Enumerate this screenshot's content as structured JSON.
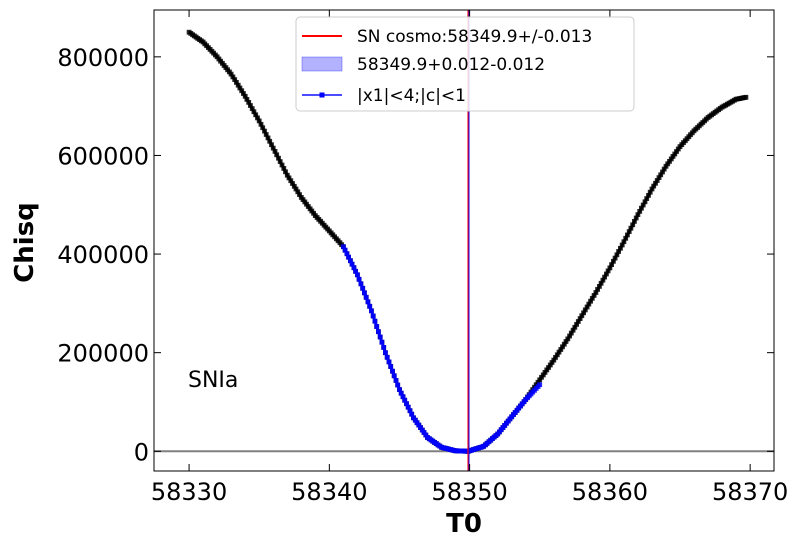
{
  "chart_data": {
    "type": "scatter",
    "title": "",
    "xlabel": "T0",
    "ylabel": "Chisq",
    "xlim": [
      58327.5,
      58371.7
    ],
    "ylim": [
      -40000,
      895000
    ],
    "xticks": [
      58330,
      58340,
      58350,
      58360,
      58370
    ],
    "yticks": [
      0,
      200000,
      400000,
      600000,
      800000
    ],
    "xtick_labels": [
      "58330",
      "58340",
      "58350",
      "58360",
      "58370"
    ],
    "ytick_labels": [
      "0",
      "200000",
      "400000",
      "600000",
      "800000"
    ],
    "grid": false,
    "legend_position": "top-center",
    "annotation": "SNIa",
    "hline": {
      "y": 0,
      "color": "#808080"
    },
    "vline": {
      "x": 58349.9,
      "color": "#ff0000"
    },
    "band": {
      "x_low": 58349.888,
      "x_high": 58349.912,
      "color": "#0000ff"
    },
    "legend": [
      {
        "label": "SN cosmo:58349.9+/-0.013",
        "kind": "line",
        "color": "#ff0000"
      },
      {
        "label": "58349.9+0.012-0.012",
        "kind": "patch",
        "color": "#0000ff"
      },
      {
        "label": "|x1|<4;|c|<1",
        "kind": "line-marker",
        "color": "#0000ff"
      }
    ],
    "series": [
      {
        "color": "#000000",
        "x": [
          58330,
          58331,
          58332,
          58333,
          58334,
          58335,
          58336,
          58337,
          58338,
          58339,
          58340,
          58341,
          58342,
          58343,
          58344,
          58345,
          58346,
          58347,
          58348,
          58349,
          58349.9,
          58351,
          58352,
          58353,
          58354,
          58355,
          58356,
          58357,
          58358,
          58359,
          58360,
          58361,
          58362,
          58363,
          58364,
          58365,
          58366,
          58367,
          58368,
          58369,
          58369.7
        ],
        "y": [
          850000,
          830000,
          800000,
          765000,
          720000,
          670000,
          615000,
          560000,
          515000,
          478000,
          447000,
          415000,
          358000,
          285000,
          200000,
          125000,
          68000,
          28000,
          8000,
          1000,
          0,
          10000,
          35000,
          70000,
          105000,
          145000,
          185000,
          228000,
          275000,
          322000,
          372000,
          425000,
          480000,
          532000,
          578000,
          618000,
          650000,
          677000,
          698000,
          714000,
          718000
        ]
      },
      {
        "name": "|x1|<4;|c|<1",
        "color": "#0000ff",
        "x": [
          58341,
          58342,
          58343,
          58344,
          58345,
          58346,
          58347,
          58348,
          58349,
          58349.9,
          58351,
          58352,
          58353,
          58354,
          58355
        ],
        "y": [
          415000,
          358000,
          285000,
          200000,
          125000,
          68000,
          28000,
          8000,
          1000,
          0,
          10000,
          35000,
          70000,
          105000,
          135000
        ]
      }
    ]
  }
}
